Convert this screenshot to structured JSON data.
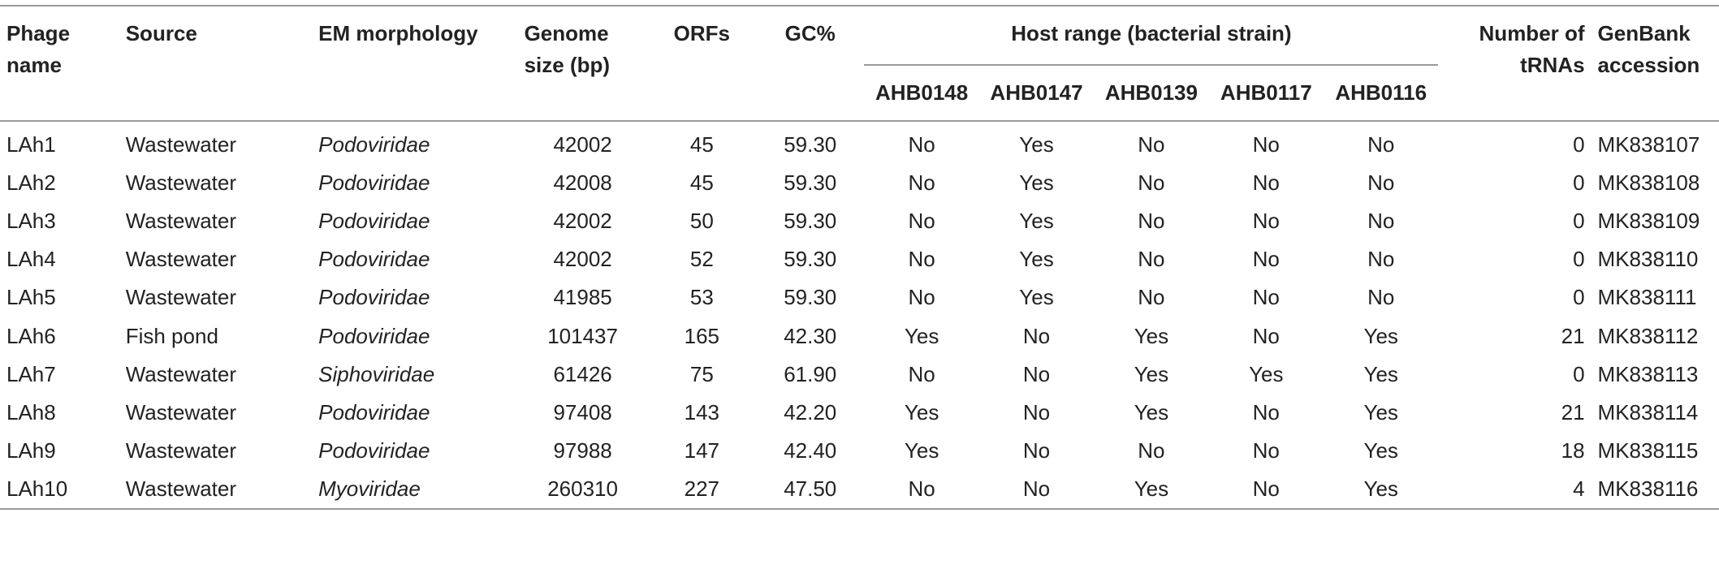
{
  "headers": {
    "phage_name": "Phage name",
    "source": "Source",
    "em_morphology": "EM morphology",
    "genome_size": "Genome size (bp)",
    "orfs": "ORFs",
    "gc": "GC%",
    "host_range": "Host range (bacterial strain)",
    "strains": [
      "AHB0148",
      "AHB0147",
      "AHB0139",
      "AHB0117",
      "AHB0116"
    ],
    "trnas": "Number of tRNAs",
    "genbank": "GenBank accession"
  },
  "rows": [
    {
      "name": "LAh1",
      "source": "Wastewater",
      "morph": "Podoviridae",
      "size": "42002",
      "orfs": "45",
      "gc": "59.30",
      "hosts": [
        "No",
        "Yes",
        "No",
        "No",
        "No"
      ],
      "trnas": "0",
      "acc": "MK838107"
    },
    {
      "name": "LAh2",
      "source": "Wastewater",
      "morph": "Podoviridae",
      "size": "42008",
      "orfs": "45",
      "gc": "59.30",
      "hosts": [
        "No",
        "Yes",
        "No",
        "No",
        "No"
      ],
      "trnas": "0",
      "acc": "MK838108"
    },
    {
      "name": "LAh3",
      "source": "Wastewater",
      "morph": "Podoviridae",
      "size": "42002",
      "orfs": "50",
      "gc": "59.30",
      "hosts": [
        "No",
        "Yes",
        "No",
        "No",
        "No"
      ],
      "trnas": "0",
      "acc": "MK838109"
    },
    {
      "name": "LAh4",
      "source": "Wastewater",
      "morph": "Podoviridae",
      "size": "42002",
      "orfs": "52",
      "gc": "59.30",
      "hosts": [
        "No",
        "Yes",
        "No",
        "No",
        "No"
      ],
      "trnas": "0",
      "acc": "MK838110"
    },
    {
      "name": "LAh5",
      "source": "Wastewater",
      "morph": "Podoviridae",
      "size": "41985",
      "orfs": "53",
      "gc": "59.30",
      "hosts": [
        "No",
        "Yes",
        "No",
        "No",
        "No"
      ],
      "trnas": "0",
      "acc": "MK838111"
    },
    {
      "name": "LAh6",
      "source": "Fish pond",
      "morph": "Podoviridae",
      "size": "101437",
      "orfs": "165",
      "gc": "42.30",
      "hosts": [
        "Yes",
        "No",
        "Yes",
        "No",
        "Yes"
      ],
      "trnas": "21",
      "acc": "MK838112"
    },
    {
      "name": "LAh7",
      "source": "Wastewater",
      "morph": "Siphoviridae",
      "size": "61426",
      "orfs": "75",
      "gc": "61.90",
      "hosts": [
        "No",
        "No",
        "Yes",
        "Yes",
        "Yes"
      ],
      "trnas": "0",
      "acc": "MK838113"
    },
    {
      "name": "LAh8",
      "source": "Wastewater",
      "morph": "Podoviridae",
      "size": "97408",
      "orfs": "143",
      "gc": "42.20",
      "hosts": [
        "Yes",
        "No",
        "Yes",
        "No",
        "Yes"
      ],
      "trnas": "21",
      "acc": "MK838114"
    },
    {
      "name": "LAh9",
      "source": "Wastewater",
      "morph": "Podoviridae",
      "size": "97988",
      "orfs": "147",
      "gc": "42.40",
      "hosts": [
        "Yes",
        "No",
        "No",
        "No",
        "Yes"
      ],
      "trnas": "18",
      "acc": "MK838115"
    },
    {
      "name": "LAh10",
      "source": "Wastewater",
      "morph": "Myoviridae",
      "size": "260310",
      "orfs": "227",
      "gc": "47.50",
      "hosts": [
        "No",
        "No",
        "Yes",
        "No",
        "Yes"
      ],
      "trnas": "4",
      "acc": "MK838116"
    }
  ]
}
